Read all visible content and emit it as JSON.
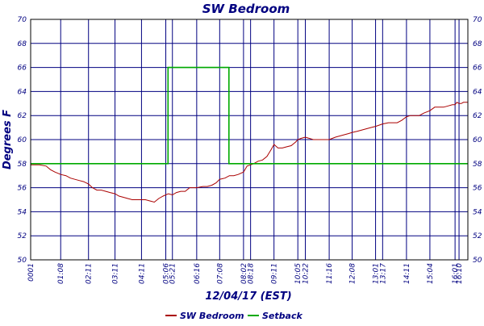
{
  "chart_data": {
    "type": "line",
    "title": "SW Bedroom",
    "xlabel": "12/04/17 (EST)",
    "ylabel": "Degrees F",
    "ylim": [
      50,
      70
    ],
    "yticks": [
      50,
      52,
      54,
      56,
      58,
      60,
      62,
      64,
      66,
      68,
      70
    ],
    "xlim": [
      0,
      990
    ],
    "x_tick_labels": [
      "0001",
      "01:08",
      "02:11",
      "03:11",
      "04:11",
      "05:06",
      "05:21",
      "06:16",
      "07:08",
      "08:02",
      "08:18",
      "09:11",
      "10:05",
      "10:22",
      "11:16",
      "12:08",
      "13:01",
      "13:17",
      "14:11",
      "15:04",
      "16:01",
      "16:10"
    ],
    "x_tick_minutes": [
      0,
      68,
      131,
      191,
      251,
      306,
      321,
      376,
      428,
      482,
      498,
      551,
      605,
      622,
      676,
      728,
      781,
      797,
      851,
      904,
      961,
      970
    ],
    "grid": true,
    "legend_position": "bottom",
    "series": [
      {
        "name": "SW Bedroom",
        "color": "#aa0000",
        "x": [
          0,
          20,
          35,
          45,
          55,
          68,
          80,
          90,
          100,
          110,
          120,
          131,
          140,
          150,
          160,
          170,
          180,
          191,
          200,
          210,
          220,
          230,
          240,
          251,
          260,
          270,
          280,
          290,
          300,
          306,
          312,
          321,
          330,
          340,
          350,
          360,
          370,
          376,
          390,
          400,
          410,
          420,
          428,
          440,
          450,
          460,
          470,
          482,
          490,
          498,
          505,
          515,
          525,
          535,
          545,
          551,
          560,
          570,
          580,
          590,
          600,
          605,
          612,
          622,
          640,
          660,
          676,
          690,
          700,
          710,
          720,
          728,
          740,
          750,
          760,
          770,
          781,
          797,
          810,
          820,
          830,
          840,
          851,
          860,
          870,
          880,
          890,
          904,
          915,
          925,
          935,
          945,
          955,
          961,
          965,
          970,
          975,
          980,
          990
        ],
        "y": [
          57.9,
          57.9,
          57.8,
          57.5,
          57.3,
          57.1,
          57.0,
          56.8,
          56.7,
          56.6,
          56.5,
          56.3,
          56.0,
          55.8,
          55.8,
          55.7,
          55.6,
          55.5,
          55.3,
          55.2,
          55.1,
          55.0,
          55.0,
          55.0,
          55.0,
          54.9,
          54.8,
          55.1,
          55.3,
          55.4,
          55.5,
          55.4,
          55.6,
          55.7,
          55.7,
          56.0,
          56.0,
          56.0,
          56.1,
          56.1,
          56.2,
          56.4,
          56.7,
          56.8,
          57.0,
          57.0,
          57.1,
          57.3,
          57.8,
          57.9,
          58.0,
          58.2,
          58.3,
          58.6,
          59.2,
          59.6,
          59.3,
          59.3,
          59.4,
          59.5,
          59.8,
          60.0,
          60.1,
          60.2,
          60.0,
          60.0,
          60.0,
          60.2,
          60.3,
          60.4,
          60.5,
          60.6,
          60.7,
          60.8,
          60.9,
          61.0,
          61.1,
          61.3,
          61.4,
          61.4,
          61.4,
          61.6,
          61.9,
          62.0,
          62.0,
          62.0,
          62.2,
          62.4,
          62.7,
          62.7,
          62.7,
          62.8,
          62.9,
          62.9,
          63.1,
          63.0,
          63.0,
          63.1,
          63.1
        ]
      },
      {
        "name": "Setback",
        "color": "#00aa00",
        "x": [
          0,
          311,
          311,
          449,
          449,
          990
        ],
        "y": [
          58,
          58,
          66,
          66,
          58,
          58
        ]
      }
    ]
  }
}
